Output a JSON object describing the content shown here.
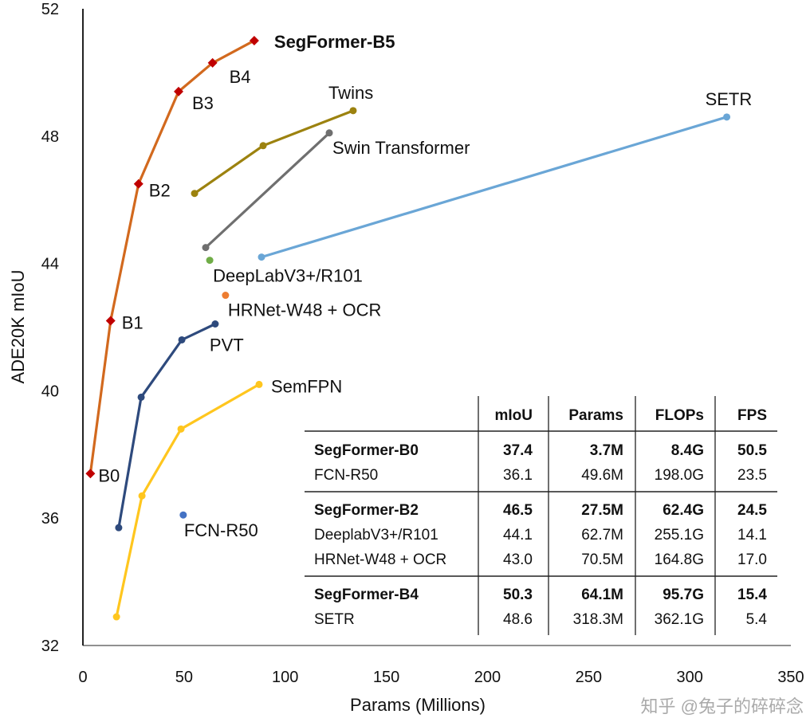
{
  "chart_data": {
    "type": "line",
    "xlabel": "Params (Millions)",
    "ylabel": "ADE20K mIoU",
    "xlim": [
      0,
      350
    ],
    "ylim": [
      32,
      52
    ],
    "xticks": [
      "0",
      "50",
      "100",
      "150",
      "200",
      "250",
      "300",
      "350"
    ],
    "yticks": [
      "32",
      "36",
      "40",
      "44",
      "48",
      "52"
    ],
    "grid": false,
    "series": [
      {
        "name": "SegFormer",
        "color": "#D2691E",
        "marker": "diamond",
        "marker_color": "#C00000",
        "points": [
          {
            "x": 3.7,
            "y": 37.4,
            "label": "B0"
          },
          {
            "x": 13.7,
            "y": 42.2,
            "label": "B1"
          },
          {
            "x": 27.5,
            "y": 46.5,
            "label": "B2"
          },
          {
            "x": 47.3,
            "y": 49.4,
            "label": "B3"
          },
          {
            "x": 64.1,
            "y": 50.3,
            "label": "B4"
          },
          {
            "x": 84.7,
            "y": 51.0,
            "label": "SegFormer-B5"
          }
        ]
      },
      {
        "name": "Twins",
        "color": "#9C820F",
        "marker": "circle",
        "points": [
          {
            "x": 55.2,
            "y": 46.2
          },
          {
            "x": 89.1,
            "y": 47.7
          },
          {
            "x": 133.6,
            "y": 48.8,
            "label": "Twins"
          }
        ]
      },
      {
        "name": "Swin Transformer",
        "color": "#6F6F6F",
        "marker": "circle",
        "points": [
          {
            "x": 60.7,
            "y": 44.5
          },
          {
            "x": 121.8,
            "y": 48.1,
            "label": "Swin Transformer"
          }
        ]
      },
      {
        "name": "SETR",
        "color": "#6AA6D6",
        "marker": "circle",
        "points": [
          {
            "x": 88.3,
            "y": 44.2
          },
          {
            "x": 318.3,
            "y": 48.6,
            "label": "SETR"
          }
        ]
      },
      {
        "name": "DeepLabV3+/R101",
        "color": "#70AD47",
        "marker": "circle",
        "points": [
          {
            "x": 62.7,
            "y": 44.1,
            "label": "DeepLabV3+/R101"
          }
        ]
      },
      {
        "name": "HRNet-W48 + OCR",
        "color": "#ED7D31",
        "marker": "circle",
        "points": [
          {
            "x": 70.5,
            "y": 43.0,
            "label": "HRNet-W48 + OCR"
          }
        ]
      },
      {
        "name": "PVT",
        "color": "#2E4A7D",
        "marker": "circle",
        "points": [
          {
            "x": 17.7,
            "y": 35.7
          },
          {
            "x": 28.8,
            "y": 39.8
          },
          {
            "x": 48.9,
            "y": 41.6
          },
          {
            "x": 65.4,
            "y": 42.1,
            "label": "PVT"
          }
        ]
      },
      {
        "name": "SemFPN",
        "color": "#FFC61E",
        "marker": "circle",
        "points": [
          {
            "x": 16.6,
            "y": 32.9
          },
          {
            "x": 29.2,
            "y": 36.7
          },
          {
            "x": 48.5,
            "y": 38.8
          },
          {
            "x": 87.1,
            "y": 40.2,
            "label": "SemFPN"
          }
        ]
      },
      {
        "name": "FCN-R50",
        "color": "#4472C4",
        "marker": "circle",
        "points": [
          {
            "x": 49.6,
            "y": 36.1,
            "label": "FCN-R50"
          }
        ]
      }
    ],
    "table": {
      "headers": [
        "",
        "mIoU",
        "Params",
        "FLOPs",
        "FPS"
      ],
      "groups": [
        [
          {
            "bold": true,
            "cells": [
              "SegFormer-B0",
              "37.4",
              "3.7M",
              "8.4G",
              "50.5"
            ]
          },
          {
            "bold": false,
            "cells": [
              "FCN-R50",
              "36.1",
              "49.6M",
              "198.0G",
              "23.5"
            ]
          }
        ],
        [
          {
            "bold": true,
            "cells": [
              "SegFormer-B2",
              "46.5",
              "27.5M",
              "62.4G",
              "24.5"
            ]
          },
          {
            "bold": false,
            "cells": [
              "DeeplabV3+/R101",
              "44.1",
              "62.7M",
              "255.1G",
              "14.1"
            ]
          },
          {
            "bold": false,
            "cells": [
              "HRNet-W48 + OCR",
              "43.0",
              "70.5M",
              "164.8G",
              "17.0"
            ]
          }
        ],
        [
          {
            "bold": true,
            "cells": [
              "SegFormer-B4",
              "50.3",
              "64.1M",
              "95.7G",
              "15.4"
            ]
          },
          {
            "bold": false,
            "cells": [
              "SETR",
              "48.6",
              "318.3M",
              "362.1G",
              "5.4"
            ]
          }
        ]
      ]
    },
    "watermark": "知乎 @兔子的碎碎念"
  }
}
